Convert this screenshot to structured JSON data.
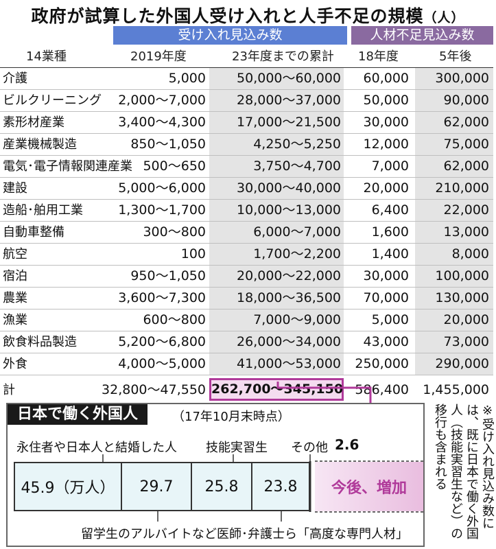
{
  "title": {
    "main": "政府が試算した外国人受け入れと人手不足の規模",
    "unit": "（人）"
  },
  "group_headers": {
    "acceptance": "受け入れ見込み数",
    "shortage": "人材不足見込み数"
  },
  "columns": [
    "14業種",
    "2019年度",
    "23年度までの累計",
    "18年度",
    "5年後"
  ],
  "rows": [
    {
      "sector": "介護",
      "fy2019": "5,000",
      "cum23": "50,000〜60,000",
      "fy18": "60,000",
      "y5": "300,000"
    },
    {
      "sector": "ビルクリーニング",
      "fy2019": "2,000〜7,000",
      "cum23": "28,000〜37,000",
      "fy18": "50,000",
      "y5": "90,000"
    },
    {
      "sector": "素形材産業",
      "fy2019": "3,400〜4,300",
      "cum23": "17,000〜21,500",
      "fy18": "30,000",
      "y5": "62,000"
    },
    {
      "sector": "産業機械製造",
      "fy2019": "850〜1,050",
      "cum23": "4,250〜5,250",
      "fy18": "12,000",
      "y5": "75,000"
    },
    {
      "sector": "電気･電子情報関連産業",
      "fy2019": "500〜650",
      "cum23": "3,750〜4,700",
      "fy18": "7,000",
      "y5": "62,000"
    },
    {
      "sector": "建設",
      "fy2019": "5,000〜6,000",
      "cum23": "30,000〜40,000",
      "fy18": "20,000",
      "y5": "210,000"
    },
    {
      "sector": "造船･舶用工業",
      "fy2019": "1,300〜1,700",
      "cum23": "10,000〜13,000",
      "fy18": "6,400",
      "y5": "22,000"
    },
    {
      "sector": "自動車整備",
      "fy2019": "300〜800",
      "cum23": "6,000〜7,000",
      "fy18": "1,600",
      "y5": "13,000"
    },
    {
      "sector": "航空",
      "fy2019": "100",
      "cum23": "1,700〜2,200",
      "fy18": "1,400",
      "y5": "8,000"
    },
    {
      "sector": "宿泊",
      "fy2019": "950〜1,050",
      "cum23": "20,000〜22,000",
      "fy18": "30,000",
      "y5": "100,000"
    },
    {
      "sector": "農業",
      "fy2019": "3,600〜7,300",
      "cum23": "18,000〜36,500",
      "fy18": "70,000",
      "y5": "130,000"
    },
    {
      "sector": "漁業",
      "fy2019": "600〜800",
      "cum23": "7,000〜9,000",
      "fy18": "5,000",
      "y5": "20,000"
    },
    {
      "sector": "飲食料品製造",
      "fy2019": "5,200〜6,800",
      "cum23": "26,000〜34,000",
      "fy18": "43,000",
      "y5": "73,000"
    },
    {
      "sector": "外食",
      "fy2019": "4,000〜5,000",
      "cum23": "41,000〜53,000",
      "fy18": "250,000",
      "y5": "290,000"
    }
  ],
  "total": {
    "sector": "計",
    "fy2019": "32,800〜47,550",
    "cum23": "262,700〜345,150",
    "fy18": "586,400",
    "y5": "1,455,000"
  },
  "inset": {
    "title": "日本で働く外国人",
    "subtitle": "（17年10月末時点）",
    "label_permanent": "永住者や日本人と結婚した人",
    "label_trainee": "技能実習生",
    "label_other": "その他",
    "value_other": "2.6",
    "label_student": "留学生のアルバイトなど",
    "label_professional": "医師･弁護士ら「高度な専門人材」",
    "future": "今後、増加",
    "bars": [
      {
        "value": "45.9（万人）"
      },
      {
        "value": "29.7"
      },
      {
        "value": "25.8"
      },
      {
        "value": "23.8"
      }
    ]
  },
  "note": [
    "※受け入れ見込み数に",
    "は、既に日本で働く外国",
    "人（技能実習生など）の",
    "移行も含まれる"
  ],
  "colors": {
    "acceptance_header": "#5b7fd3",
    "shortage_header": "#8a6aa0",
    "highlight": "#b03a9a",
    "bar_fill": "#e8f5f8"
  }
}
